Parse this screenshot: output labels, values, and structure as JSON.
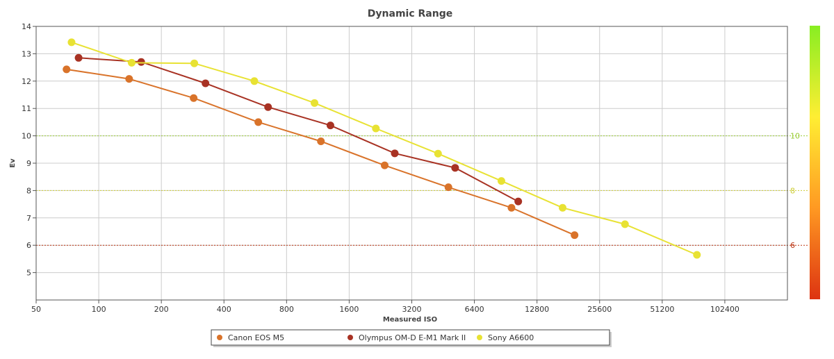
{
  "chart_data": {
    "type": "line",
    "title": "Dynamic Range",
    "xlabel": "Measured ISO",
    "ylabel": "Ev",
    "x_scale": "log2",
    "x_ticks": [
      "50",
      "100",
      "200",
      "400",
      "800",
      "1600",
      "3200",
      "6400",
      "12800",
      "25600",
      "51200",
      "102400"
    ],
    "x_tick_values": [
      50,
      100,
      200,
      400,
      800,
      1600,
      3200,
      6400,
      12800,
      25600,
      51200,
      102400
    ],
    "xlim": [
      50,
      204800
    ],
    "y_ticks": [
      "5",
      "6",
      "7",
      "8",
      "9",
      "10",
      "11",
      "12",
      "13",
      "14"
    ],
    "y_tick_values": [
      5,
      6,
      7,
      8,
      9,
      10,
      11,
      12,
      13,
      14
    ],
    "ylim": [
      4,
      14
    ],
    "grid": true,
    "reference_lines": [
      {
        "y": 10,
        "label": "10",
        "color": "#99cc33"
      },
      {
        "y": 8,
        "label": "8",
        "color": "#cccc33"
      },
      {
        "y": 6,
        "label": "6",
        "color": "#bb3311"
      }
    ],
    "color_scale": {
      "stops": [
        "#dd3311",
        "#ff9922",
        "#ffee33",
        "#88ee22"
      ]
    },
    "legend_position": "bottom-center",
    "series": [
      {
        "name": "Canon EOS M5",
        "color": "#d9732a",
        "points": [
          [
            70,
            12.43
          ],
          [
            140,
            12.08
          ],
          [
            286,
            11.38
          ],
          [
            585,
            10.5
          ],
          [
            1170,
            9.8
          ],
          [
            2370,
            8.92
          ],
          [
            4800,
            8.12
          ],
          [
            9650,
            7.37
          ],
          [
            19400,
            6.37
          ]
        ]
      },
      {
        "name": "Olympus OM-D E-M1 Mark II",
        "color": "#a83223",
        "points": [
          [
            80,
            12.85
          ],
          [
            160,
            12.7
          ],
          [
            326,
            11.92
          ],
          [
            652,
            11.05
          ],
          [
            1300,
            10.38
          ],
          [
            2650,
            9.36
          ],
          [
            5170,
            8.83
          ],
          [
            10400,
            7.6
          ]
        ]
      },
      {
        "name": "Sony A6600",
        "color": "#e8e233",
        "points": [
          [
            74,
            13.42
          ],
          [
            144,
            12.67
          ],
          [
            288,
            12.65
          ],
          [
            560,
            12.0
          ],
          [
            1090,
            11.2
          ],
          [
            2150,
            10.27
          ],
          [
            4280,
            9.35
          ],
          [
            8630,
            8.35
          ],
          [
            17000,
            7.37
          ],
          [
            33900,
            6.77
          ],
          [
            75200,
            5.65
          ]
        ]
      }
    ]
  }
}
